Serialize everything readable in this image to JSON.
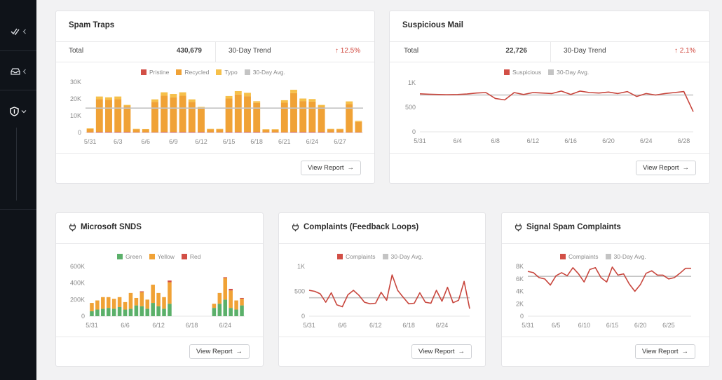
{
  "colors": {
    "pristine": "#d24f46",
    "recycled": "#f0a236",
    "typo": "#f6c04a",
    "avg": "#c4c4c4",
    "line": "#c8463d",
    "green": "#5bb06a",
    "yellow": "#f0a236",
    "red": "#d24f46"
  },
  "sidebar": {
    "items": [
      {
        "icon": "check-double-icon"
      },
      {
        "icon": "inbox-icon"
      },
      {
        "icon": "shield-icon"
      }
    ]
  },
  "common": {
    "view_report": "View Report"
  },
  "spam_traps": {
    "title": "Spam Traps",
    "total_label": "Total",
    "total_value": "430,679",
    "trend_label": "30-Day Trend",
    "trend_value": "12.5%",
    "legend": [
      "Pristine",
      "Recycled",
      "Typo",
      "30-Day Avg."
    ]
  },
  "suspicious_mail": {
    "title": "Suspicious Mail",
    "total_label": "Total",
    "total_value": "22,726",
    "trend_label": "30-Day Trend",
    "trend_value": "2.1%",
    "legend": [
      "Suspicious",
      "30-Day Avg."
    ]
  },
  "snds": {
    "title": "Microsoft SNDS",
    "legend": [
      "Green",
      "Yellow",
      "Red"
    ]
  },
  "complaints_fbl": {
    "title": "Complaints (Feedback Loops)",
    "legend": [
      "Complaints",
      "30-Day Avg."
    ]
  },
  "signal_spam": {
    "title": "Signal Spam Complaints",
    "legend": [
      "Complaints",
      "30-Day Avg."
    ]
  },
  "chart_data": [
    {
      "id": "spam_traps",
      "type": "bar",
      "categories": [
        "5/31",
        "6/1",
        "6/2",
        "6/3",
        "6/4",
        "6/5",
        "6/6",
        "6/7",
        "6/8",
        "6/9",
        "6/10",
        "6/11",
        "6/12",
        "6/13",
        "6/14",
        "6/15",
        "6/16",
        "6/17",
        "6/18",
        "6/19",
        "6/20",
        "6/21",
        "6/22",
        "6/23",
        "6/24",
        "6/25",
        "6/26",
        "6/27",
        "6/28",
        "6/29"
      ],
      "series": [
        {
          "name": "Pristine",
          "values": [
            200,
            400,
            400,
            400,
            400,
            200,
            200,
            200,
            400,
            400,
            400,
            400,
            400,
            200,
            200,
            400,
            400,
            400,
            400,
            200,
            200,
            200,
            400,
            400,
            400,
            400,
            200,
            200,
            200,
            200
          ]
        },
        {
          "name": "Recycled",
          "values": [
            2000,
            19500,
            19000,
            19500,
            15300,
            1800,
            1700,
            18000,
            21500,
            20500,
            21500,
            17800,
            14000,
            1800,
            1800,
            19800,
            22200,
            21200,
            17200,
            1600,
            1600,
            17500,
            23000,
            18300,
            18000,
            15000,
            1800,
            1800,
            16800,
            6200
          ]
        },
        {
          "name": "Typo",
          "values": [
            300,
            1500,
            1500,
            1500,
            700,
            200,
            200,
            1500,
            2000,
            2000,
            2000,
            1500,
            800,
            200,
            200,
            1500,
            2000,
            2000,
            1000,
            200,
            200,
            1500,
            2000,
            1500,
            1500,
            1000,
            200,
            200,
            1500,
            500
          ]
        }
      ],
      "avg": 14500,
      "ylim": [
        0,
        30000
      ],
      "yticks": [
        "0",
        "10K",
        "20K",
        "30K"
      ],
      "xticks": [
        "5/31",
        "6/3",
        "6/6",
        "6/9",
        "6/12",
        "6/15",
        "6/18",
        "6/21",
        "6/24",
        "6/27"
      ]
    },
    {
      "id": "suspicious_mail",
      "type": "line",
      "x": [
        "5/31",
        "6/1",
        "6/2",
        "6/3",
        "6/4",
        "6/5",
        "6/6",
        "6/7",
        "6/8",
        "6/9",
        "6/10",
        "6/11",
        "6/12",
        "6/13",
        "6/14",
        "6/15",
        "6/16",
        "6/17",
        "6/18",
        "6/19",
        "6/20",
        "6/21",
        "6/22",
        "6/23",
        "6/24",
        "6/25",
        "6/26",
        "6/27",
        "6/28",
        "6/29"
      ],
      "series": [
        {
          "name": "Suspicious",
          "values": [
            775,
            765,
            760,
            755,
            760,
            770,
            790,
            800,
            680,
            650,
            800,
            760,
            800,
            790,
            780,
            830,
            760,
            830,
            800,
            790,
            810,
            780,
            820,
            720,
            780,
            750,
            780,
            800,
            820,
            410
          ]
        }
      ],
      "avg": 750,
      "ylim": [
        0,
        1000
      ],
      "yticks": [
        "0",
        "500",
        "1K"
      ],
      "xticks": [
        "5/31",
        "6/4",
        "6/8",
        "6/12",
        "6/16",
        "6/20",
        "6/24",
        "6/28"
      ]
    },
    {
      "id": "snds",
      "type": "bar",
      "categories": [
        "5/31",
        "6/1",
        "6/2",
        "6/3",
        "6/4",
        "6/5",
        "6/6",
        "6/7",
        "6/8",
        "6/9",
        "6/10",
        "6/11",
        "6/12",
        "6/13",
        "6/14",
        "6/15",
        "6/16",
        "6/17",
        "6/18",
        "6/19",
        "6/20",
        "6/21",
        "6/22",
        "6/23",
        "6/24",
        "6/25",
        "6/26",
        "6/27"
      ],
      "series": [
        {
          "name": "Green",
          "values": [
            60000,
            80000,
            90000,
            100000,
            90000,
            110000,
            80000,
            90000,
            130000,
            120000,
            90000,
            160000,
            120000,
            90000,
            150000,
            0,
            0,
            0,
            0,
            0,
            0,
            0,
            100000,
            150000,
            200000,
            100000,
            80000,
            130000
          ]
        },
        {
          "name": "Yellow",
          "values": [
            100000,
            110000,
            140000,
            130000,
            120000,
            120000,
            90000,
            190000,
            90000,
            170000,
            110000,
            220000,
            160000,
            140000,
            260000,
            0,
            0,
            0,
            0,
            0,
            0,
            0,
            50000,
            130000,
            260000,
            210000,
            110000,
            80000
          ]
        },
        {
          "name": "Red",
          "values": [
            0,
            0,
            0,
            0,
            0,
            0,
            0,
            0,
            0,
            10000,
            0,
            0,
            0,
            0,
            20000,
            0,
            0,
            0,
            0,
            0,
            0,
            0,
            0,
            0,
            10000,
            20000,
            0,
            10000
          ]
        }
      ],
      "ylim": [
        0,
        600000
      ],
      "yticks": [
        "0",
        "200K",
        "400K",
        "600K"
      ],
      "xticks": [
        "5/31",
        "6/6",
        "6/12",
        "6/18",
        "6/24"
      ]
    },
    {
      "id": "complaints_fbl",
      "type": "line",
      "x": [
        "5/31",
        "6/1",
        "6/2",
        "6/3",
        "6/4",
        "6/5",
        "6/6",
        "6/7",
        "6/8",
        "6/9",
        "6/10",
        "6/11",
        "6/12",
        "6/13",
        "6/14",
        "6/15",
        "6/16",
        "6/17",
        "6/18",
        "6/19",
        "6/20",
        "6/21",
        "6/22",
        "6/23",
        "6/24",
        "6/25",
        "6/26",
        "6/27",
        "6/28",
        "6/29"
      ],
      "series": [
        {
          "name": "Complaints",
          "values": [
            520,
            500,
            450,
            280,
            470,
            230,
            190,
            430,
            520,
            420,
            280,
            250,
            260,
            480,
            320,
            830,
            520,
            380,
            250,
            260,
            470,
            280,
            260,
            520,
            300,
            580,
            270,
            320,
            700,
            150
          ]
        }
      ],
      "avg": 370,
      "ylim": [
        0,
        1000
      ],
      "yticks": [
        "0",
        "500",
        "1K"
      ],
      "xticks": [
        "5/31",
        "6/6",
        "6/12",
        "6/18",
        "6/24"
      ]
    },
    {
      "id": "signal_spam",
      "type": "line",
      "x": [
        "5/31",
        "6/1",
        "6/2",
        "6/3",
        "6/4",
        "6/5",
        "6/6",
        "6/7",
        "6/8",
        "6/9",
        "6/10",
        "6/11",
        "6/12",
        "6/13",
        "6/14",
        "6/15",
        "6/16",
        "6/17",
        "6/18",
        "6/19",
        "6/20",
        "6/21",
        "6/22",
        "6/23",
        "6/24",
        "6/25",
        "6/26",
        "6/27",
        "6/28",
        "6/29"
      ],
      "series": [
        {
          "name": "Complaints",
          "values": [
            7200,
            7000,
            6200,
            6000,
            5000,
            6500,
            7000,
            6500,
            7800,
            6800,
            5500,
            7500,
            7800,
            6200,
            5500,
            7900,
            6600,
            6800,
            5200,
            4000,
            5100,
            6900,
            7300,
            6600,
            6600,
            6000,
            6200,
            6900,
            7700,
            7700
          ]
        }
      ],
      "avg": 6400,
      "ylim": [
        0,
        8000
      ],
      "yticks": [
        "0",
        "2K",
        "4K",
        "6K",
        "8K"
      ],
      "xticks": [
        "5/31",
        "6/5",
        "6/10",
        "6/15",
        "6/20",
        "6/25"
      ]
    }
  ]
}
